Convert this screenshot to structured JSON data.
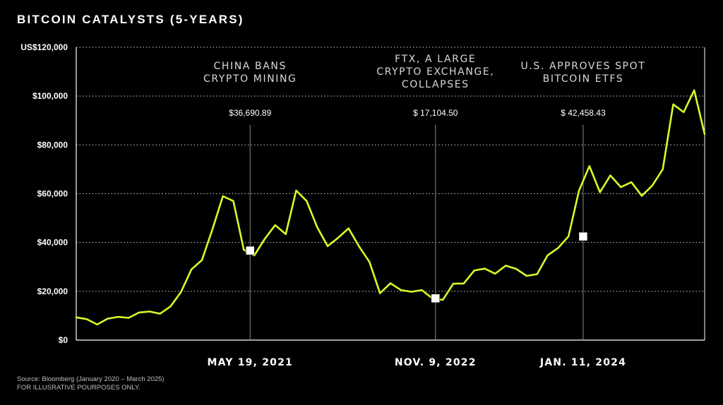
{
  "chart_data": {
    "type": "line",
    "title": "BITCOIN CATALYSTS (5-YEARS)",
    "xlabel": "",
    "ylabel": "",
    "ylim": [
      0,
      120000
    ],
    "yticks": [
      "US$120,000",
      "$100,000",
      "$80,000",
      "$60,000",
      "$40,000",
      "$20,000",
      "$0"
    ],
    "ytick_values": [
      120000,
      100000,
      80000,
      60000,
      40000,
      20000,
      0
    ],
    "grid": "horizontal-dotted",
    "line_color": "#d4ff2a",
    "x_start": "2020-01",
    "x_end": "2025-03",
    "series": [
      {
        "values": [
          9300,
          8600,
          6400,
          8800,
          9500,
          9100,
          11300,
          11700,
          10800,
          13800,
          19700,
          29000,
          32800,
          45300,
          59000,
          57000,
          37000,
          34700,
          41500,
          47100,
          43400,
          61300,
          57000,
          46300,
          38500,
          41900,
          45800,
          38400,
          32000,
          19200,
          23300,
          20500,
          19800,
          20500,
          17100,
          16500,
          23100,
          23200,
          28500,
          29300,
          27200,
          30500,
          29200,
          26300,
          27000,
          34700,
          37700,
          42500,
          61200,
          71300,
          60600,
          67500,
          62700,
          64700,
          59100,
          63300,
          70000,
          96600,
          93400,
          102400,
          84400
        ]
      }
    ],
    "events": [
      {
        "label_lines": [
          "CHINA BANS",
          "CRYPTO MINING"
        ],
        "price": "$36,690.89",
        "date": "MAY 19, 2021",
        "x_index": 16.6,
        "value": 36690.89
      },
      {
        "label_lines": [
          "FTX, A LARGE",
          "CRYPTO EXCHANGE,",
          "COLLAPSES"
        ],
        "price": "$ 17,104.50",
        "date": "NOV. 9, 2022",
        "x_index": 34.3,
        "value": 17104.5
      },
      {
        "label_lines": [
          "U.S. APPROVES SPOT",
          "BITCOIN ETFS"
        ],
        "price": "$ 42,458.43",
        "date": "JAN. 11, 2024",
        "x_index": 48.4,
        "value": 42458.43
      }
    ]
  },
  "source": {
    "line1": "Source: Bloomberg (January 2020 – March 2025)",
    "line2": "FOR ILLUSRATIVE POURPOSES ONLY."
  }
}
